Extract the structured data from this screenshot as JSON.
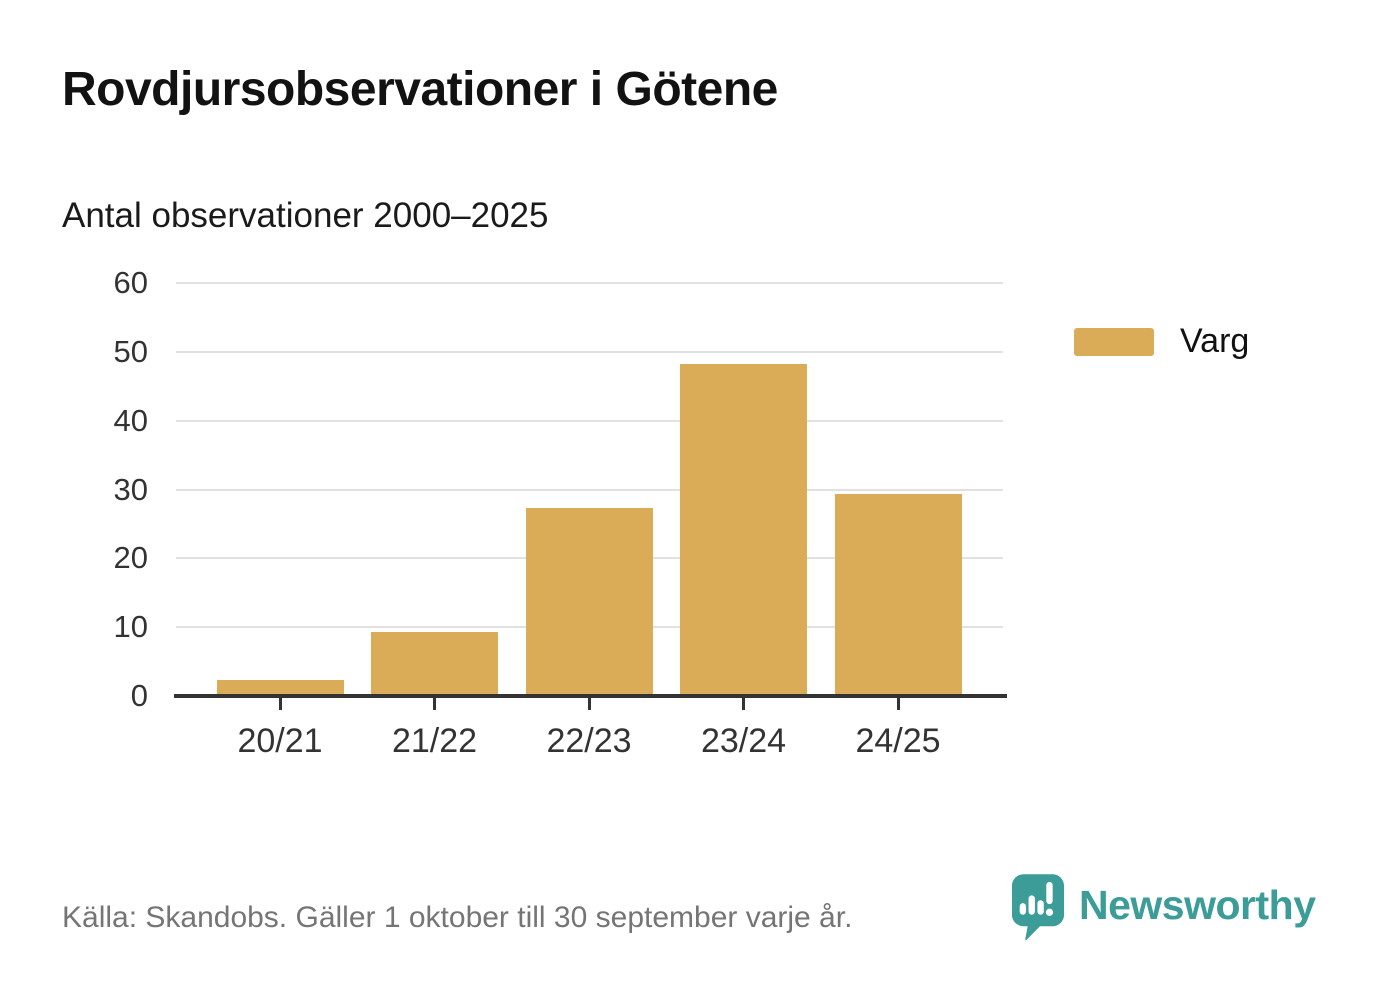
{
  "header": {
    "title": "Rovdjursobservationer i Götene",
    "subtitle": "Antal observationer 2000–2025"
  },
  "chart_data": {
    "type": "bar",
    "title": "Rovdjursobservationer i Götene",
    "subtitle": "Antal observationer 2000–2025",
    "categories": [
      "20/21",
      "21/22",
      "22/23",
      "23/24",
      "24/25"
    ],
    "series": [
      {
        "name": "Varg",
        "values": [
          2,
          9,
          27,
          48,
          29
        ]
      }
    ],
    "xlabel": "",
    "ylabel": "",
    "ylim": [
      0,
      60
    ],
    "yticks": [
      0,
      10,
      20,
      30,
      40,
      50,
      60
    ],
    "grid": true,
    "legend_position": "right-of-plot",
    "bar_color": "#DBAC58"
  },
  "legend": {
    "items": [
      {
        "label": "Varg",
        "color": "#DBAC58"
      }
    ]
  },
  "footer": {
    "source": "Källa: Skandobs. Gäller 1 oktober till 30 september varje år.",
    "brand": "Newsworthy"
  },
  "colors": {
    "bar": "#DBAC58",
    "grid": "#E1E1E1",
    "axis": "#333333",
    "title": "#121212",
    "tick_text": "#333333",
    "muted": "#757575",
    "brand_teal": "#3B9C98",
    "background": "#FFFFFF"
  },
  "icons": {
    "logo": "newsworthy-logo-icon"
  }
}
